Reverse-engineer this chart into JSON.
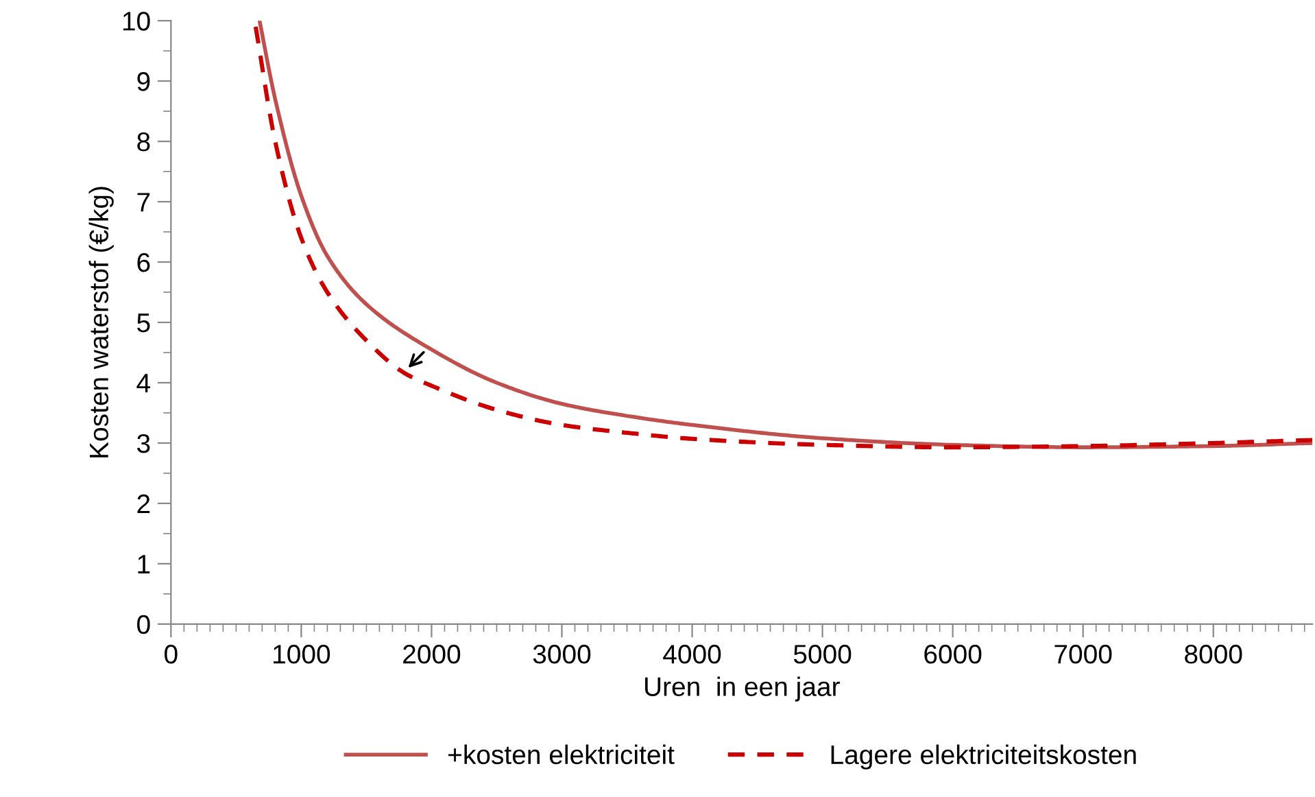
{
  "chart_data": {
    "type": "line",
    "xlabel": "Uren  in een jaar",
    "ylabel": "Kosten waterstof (€/kg)",
    "xlim": [
      0,
      8760
    ],
    "xticks": [
      0,
      1000,
      2000,
      3000,
      4000,
      5000,
      6000,
      7000,
      8000
    ],
    "ylim": [
      0,
      10
    ],
    "yticks": [
      0,
      1,
      2,
      3,
      4,
      5,
      6,
      7,
      8,
      9,
      10
    ],
    "grid": false,
    "legend": "bottom",
    "marker": "none",
    "series": [
      {
        "name": "+kosten elektriciteit",
        "color": "#c0504d",
        "line_style": "solid",
        "x": [
          680,
          800,
          1000,
          1200,
          1500,
          2000,
          2500,
          3000,
          3500,
          4000,
          5000,
          6000,
          7000,
          8000,
          8760
        ],
        "values": [
          10,
          8.7,
          7.1,
          6.1,
          5.3,
          4.55,
          4.0,
          3.65,
          3.45,
          3.3,
          3.08,
          2.97,
          2.93,
          2.95,
          3.0
        ]
      },
      {
        "name": "Lagere elektriciteitskosten",
        "color": "#cc0000",
        "line_style": "dashed",
        "x": [
          650,
          800,
          1000,
          1200,
          1500,
          1800,
          2000,
          2500,
          3000,
          3500,
          4000,
          5000,
          6000,
          7000,
          8000,
          8760
        ],
        "values": [
          9.9,
          8.0,
          6.4,
          5.5,
          4.7,
          4.15,
          3.95,
          3.55,
          3.3,
          3.17,
          3.07,
          2.97,
          2.93,
          2.95,
          3.0,
          3.05
        ]
      }
    ]
  }
}
